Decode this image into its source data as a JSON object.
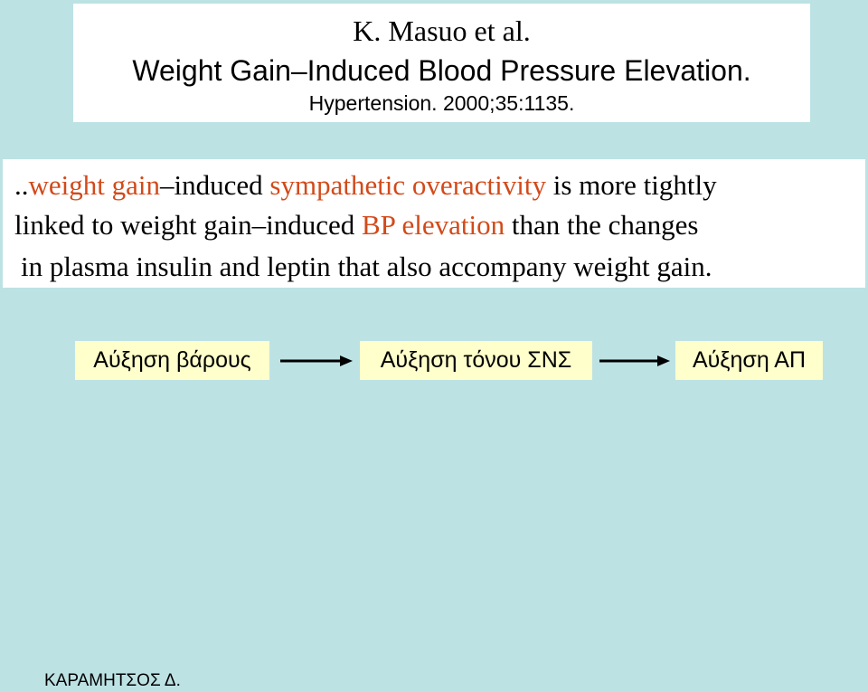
{
  "citation": {
    "authors": "K. Masuo et al.",
    "title": "Weight Gain–Induced Blood Pressure Elevation.",
    "journal": "Hypertension. 2000;35:1135."
  },
  "quote": {
    "line1": {
      "prefix": "..",
      "weight_gain": "weight gain",
      "induced": "–induced",
      "sympathetic_overactivity": "sympathetic overactivity",
      "rest": "is more tightly"
    },
    "line2": {
      "start": "linked to weight gain–induced",
      "bp_elevation": "BP elevation",
      "rest": "than the changes"
    },
    "line3": {
      "start": "in plasma insulin and leptin",
      "rest": "that also accompany weight gain."
    }
  },
  "flow": {
    "step1": "Αύξηση βάρους",
    "step2": "Αύξηση τόνου ΣΝΣ",
    "step3": "Αύξηση ΑΠ"
  },
  "footer": {
    "author": "ΚΑΡΑΜΗΤΣΟΣ Δ."
  },
  "colors": {
    "background": "#bde2e4",
    "highlight": "#d24a1a",
    "flow_box": "#ffffcc"
  }
}
